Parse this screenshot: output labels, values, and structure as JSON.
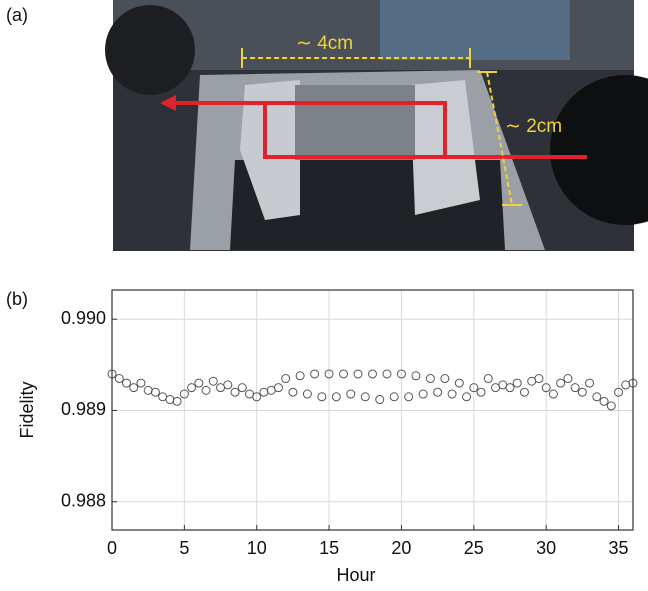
{
  "photo_panel": {
    "label": "(a)",
    "width_annotation": "∼ 4cm",
    "height_annotation": "∼ 2cm"
  },
  "chart_data": {
    "type": "scatter",
    "panel_label": "(b)",
    "x_label": "Hour",
    "y_label": "Fidelity",
    "xlim": [
      0,
      36
    ],
    "ylim": [
      0.98769,
      0.99032
    ],
    "xticks": [
      0,
      5,
      10,
      15,
      20,
      25,
      30,
      35
    ],
    "yticks": [
      0.988,
      0.989,
      {
        "value": 0.99,
        "label": "0.990"
      }
    ],
    "grid": true,
    "color": "#555555",
    "x": [
      0,
      0.5,
      1,
      1.5,
      2,
      2.5,
      3,
      3.5,
      4,
      4.5,
      5,
      5.5,
      6,
      6.5,
      7,
      7.5,
      8,
      8.5,
      9,
      9.5,
      10,
      10.5,
      11,
      11.5,
      12,
      12.5,
      13,
      13.5,
      14,
      14.5,
      15,
      15.5,
      16,
      16.5,
      17,
      17.5,
      18,
      18.5,
      19,
      19.5,
      20,
      20.5,
      21,
      21.5,
      22,
      22.5,
      23,
      23.5,
      24,
      24.5,
      25,
      25.5,
      26,
      26.5,
      27,
      27.5,
      28,
      28.5,
      29,
      29.5,
      30,
      30.5,
      31,
      31.5,
      32,
      32.5,
      33,
      33.5,
      34,
      34.5,
      35,
      35.5,
      36
    ],
    "values": [
      0.9894,
      0.98935,
      0.9893,
      0.98925,
      0.9893,
      0.98922,
      0.9892,
      0.98915,
      0.98912,
      0.9891,
      0.98918,
      0.98925,
      0.9893,
      0.98922,
      0.98932,
      0.98925,
      0.98928,
      0.9892,
      0.98925,
      0.98918,
      0.98915,
      0.9892,
      0.98922,
      0.98925,
      0.98935,
      0.9892,
      0.98938,
      0.98918,
      0.9894,
      0.98915,
      0.9894,
      0.98915,
      0.9894,
      0.98918,
      0.9894,
      0.98915,
      0.9894,
      0.98912,
      0.9894,
      0.98915,
      0.9894,
      0.98915,
      0.98938,
      0.98918,
      0.98935,
      0.9892,
      0.98935,
      0.98918,
      0.9893,
      0.98915,
      0.98925,
      0.9892,
      0.98935,
      0.98925,
      0.98928,
      0.98925,
      0.9893,
      0.9892,
      0.98932,
      0.98935,
      0.98925,
      0.98918,
      0.9893,
      0.98935,
      0.98925,
      0.9892,
      0.9893,
      0.98915,
      0.9891,
      0.98905,
      0.9892,
      0.98928,
      0.9893
    ]
  }
}
